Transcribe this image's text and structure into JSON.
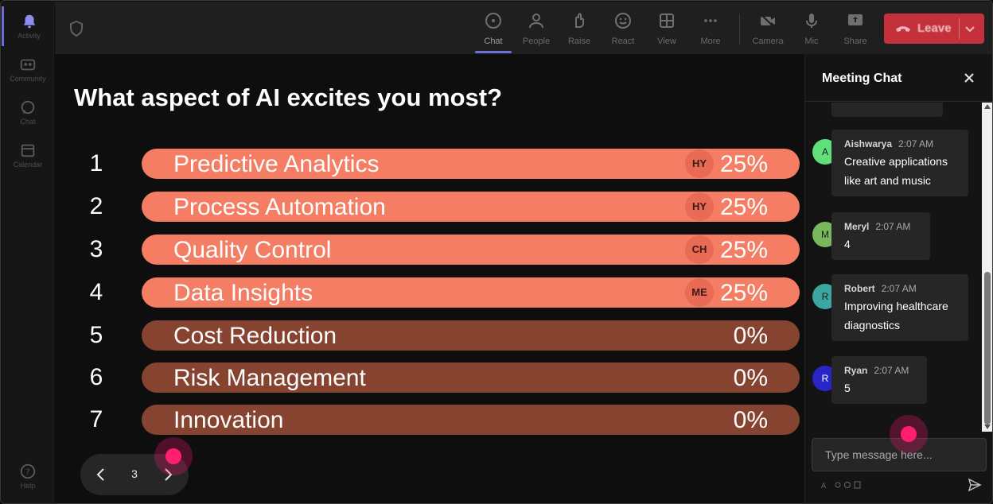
{
  "rail": {
    "items": [
      {
        "label": "Activity",
        "icon": "bell-icon",
        "active": true
      },
      {
        "label": "Community",
        "icon": "community-icon"
      },
      {
        "label": "Chat",
        "icon": "chat-icon"
      },
      {
        "label": "Calendar",
        "icon": "calendar-icon"
      }
    ],
    "help": {
      "label": "Help",
      "icon": "help-icon"
    }
  },
  "toolbar": {
    "chat": "Chat",
    "people": "People",
    "raise": "Raise",
    "react": "React",
    "view": "View",
    "more": "More",
    "camera": "Camera",
    "mic": "Mic",
    "share": "Share",
    "leave": "Leave",
    "accent_color": "#6b6fd6",
    "leave_color": "#c4313b"
  },
  "poll": {
    "title": "What aspect of AI excites you most?",
    "options": [
      {
        "num": "1",
        "label": "Predictive Analytics",
        "badge": "HY",
        "percent": "25%",
        "selected": true
      },
      {
        "num": "2",
        "label": "Process Automation",
        "badge": "HY",
        "percent": "25%",
        "selected": true
      },
      {
        "num": "3",
        "label": "Quality Control",
        "badge": "CH",
        "percent": "25%",
        "selected": true
      },
      {
        "num": "4",
        "label": "Data Insights",
        "badge": "ME",
        "percent": "25%",
        "selected": true
      },
      {
        "num": "5",
        "label": "Cost Reduction",
        "badge": "",
        "percent": "0%",
        "selected": false
      },
      {
        "num": "6",
        "label": "Risk Management",
        "badge": "",
        "percent": "0%",
        "selected": false
      },
      {
        "num": "7",
        "label": "Innovation",
        "badge": "",
        "percent": "0%",
        "selected": false
      }
    ],
    "hot_color": "#f47d64",
    "cold_color": "#86432f"
  },
  "pager": {
    "current": "3"
  },
  "chat": {
    "title": "Meeting Chat",
    "messages": [
      {
        "initial": "A",
        "author": "Aishwarya",
        "time": "2:07 AM",
        "lines": [
          "Creative applications",
          "like art and music"
        ],
        "color": "#5fe07a"
      },
      {
        "initial": "M",
        "author": "Meryl",
        "time": "2:07 AM",
        "lines": [
          "4"
        ],
        "color": "#7ab85c"
      },
      {
        "initial": "R",
        "author": "Robert",
        "time": "2:07 AM",
        "lines": [
          "Improving healthcare",
          "diagnostics"
        ],
        "color": "#3aa8a0"
      },
      {
        "initial": "R",
        "author": "Ryan",
        "time": "2:07 AM",
        "lines": [
          "5"
        ],
        "color": "#2a25c8"
      }
    ],
    "input_placeholder": "Type message here..."
  }
}
